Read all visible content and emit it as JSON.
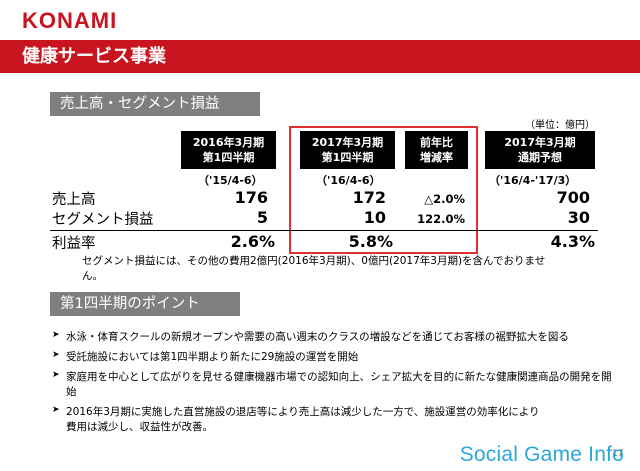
{
  "header": {
    "logo": "KONAMI",
    "title": "健康サービス事業"
  },
  "sections": {
    "sales": "売上高・セグメント損益",
    "points": "第1四半期のポイント"
  },
  "table": {
    "unit": "（単位：億円）",
    "columns": [
      {
        "header_line1": "2016年3月期",
        "header_line2": "第1四半期",
        "period": "（'15/4-6）"
      },
      {
        "header_line1": "2017年3月期",
        "header_line2": "第1四半期",
        "period": "（'16/4-6）"
      },
      {
        "header_line1": "前年比",
        "header_line2": "増減率",
        "period": ""
      },
      {
        "header_line1": "2017年3月期",
        "header_line2": "通期予想",
        "period": "（'16/4-'17/3）"
      }
    ],
    "rows": [
      {
        "label": "売上高",
        "values": [
          "176",
          "172",
          "△2.0%",
          "700"
        ]
      },
      {
        "label": "セグメント損益",
        "values": [
          "5",
          "10",
          "122.0%",
          "30"
        ]
      },
      {
        "label": "利益率",
        "values": [
          "2.6%",
          "5.8%",
          "",
          "4.3%"
        ]
      }
    ],
    "note": "セグメント損益には、その他の費用2億円(2016年3月期)、0億円(2017年3月期)を含んでおりません。"
  },
  "bullets": [
    "水泳・体育スクールの新規オープンや需要の高い週末のクラスの増設などを通じてお客様の裾野拡大を図る",
    "受託施設においては第1四半期より新たに29施設の運営を開始",
    "家庭用を中心として広がりを見せる健康機器市場での認知向上、シェア拡大を目的に新たな健康関連商品の開発を開始",
    "2016年3月期に実施した直営施設の退店等により売上高は減少した一方で、施設運営の効率化により費用は減少し、収益性が改善。"
  ],
  "bullet_icon": "chevron-right-icon",
  "page_number": "17",
  "watermark": "Social Game Info",
  "colors": {
    "brand_red": "#c8141e",
    "section_gray": "#7f7f7f",
    "highlight_red": "#e0312f",
    "watermark_blue": "#2aa7d8"
  }
}
